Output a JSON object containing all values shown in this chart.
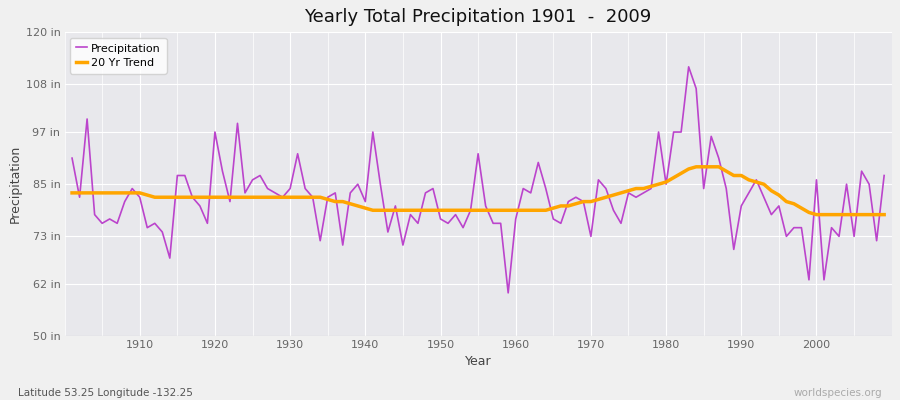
{
  "title": "Yearly Total Precipitation 1901  -  2009",
  "xlabel": "Year",
  "ylabel": "Precipitation",
  "subtitle": "Latitude 53.25 Longitude -132.25",
  "watermark": "worldspecies.org",
  "ylim": [
    50,
    120
  ],
  "ytick_values": [
    50,
    62,
    73,
    85,
    97,
    108,
    120
  ],
  "ytick_labels": [
    "50 in",
    "62 in",
    "73 in",
    "85 in",
    "97 in",
    "108 in",
    "120 in"
  ],
  "xlim": [
    1900,
    2010
  ],
  "xtick_positions": [
    1910,
    1920,
    1930,
    1940,
    1950,
    1960,
    1970,
    1980,
    1990,
    2000
  ],
  "precip_color": "#BB44CC",
  "trend_color": "#FFA500",
  "fig_bg_color": "#F0F0F0",
  "plot_bg_color": "#E8E8EC",
  "grid_color": "#FFFFFF",
  "subtitle_color": "#555555",
  "watermark_color": "#AAAAAA",
  "years": [
    1901,
    1902,
    1903,
    1904,
    1905,
    1906,
    1907,
    1908,
    1909,
    1910,
    1911,
    1912,
    1913,
    1914,
    1915,
    1916,
    1917,
    1918,
    1919,
    1920,
    1921,
    1922,
    1923,
    1924,
    1925,
    1926,
    1927,
    1928,
    1929,
    1930,
    1931,
    1932,
    1933,
    1934,
    1935,
    1936,
    1937,
    1938,
    1939,
    1940,
    1941,
    1942,
    1943,
    1944,
    1945,
    1946,
    1947,
    1948,
    1949,
    1950,
    1951,
    1952,
    1953,
    1954,
    1955,
    1956,
    1957,
    1958,
    1959,
    1960,
    1961,
    1962,
    1963,
    1964,
    1965,
    1966,
    1967,
    1968,
    1969,
    1970,
    1971,
    1972,
    1973,
    1974,
    1975,
    1976,
    1977,
    1978,
    1979,
    1980,
    1981,
    1982,
    1983,
    1984,
    1985,
    1986,
    1987,
    1988,
    1989,
    1990,
    1991,
    1992,
    1993,
    1994,
    1995,
    1996,
    1997,
    1998,
    1999,
    2000,
    2001,
    2002,
    2003,
    2004,
    2005,
    2006,
    2007,
    2008,
    2009
  ],
  "precipitation": [
    91,
    82,
    100,
    78,
    76,
    77,
    76,
    81,
    84,
    82,
    75,
    76,
    74,
    68,
    87,
    87,
    82,
    80,
    76,
    97,
    88,
    81,
    99,
    83,
    86,
    87,
    84,
    83,
    82,
    84,
    92,
    84,
    82,
    72,
    82,
    83,
    71,
    83,
    85,
    81,
    97,
    85,
    74,
    80,
    71,
    78,
    76,
    83,
    84,
    77,
    76,
    78,
    75,
    79,
    92,
    80,
    76,
    76,
    60,
    77,
    84,
    83,
    90,
    84,
    77,
    76,
    81,
    82,
    81,
    73,
    86,
    84,
    79,
    76,
    83,
    82,
    83,
    84,
    97,
    85,
    97,
    97,
    112,
    107,
    84,
    96,
    91,
    84,
    70,
    80,
    83,
    86,
    82,
    78,
    80,
    73,
    75,
    75,
    63,
    86,
    63,
    75,
    73,
    85,
    73,
    88,
    85,
    72,
    87
  ],
  "trend": [
    83.0,
    83.0,
    83.0,
    83.0,
    83.0,
    83.0,
    83.0,
    83.0,
    83.0,
    83.0,
    82.5,
    82.0,
    82.0,
    82.0,
    82.0,
    82.0,
    82.0,
    82.0,
    82.0,
    82.0,
    82.0,
    82.0,
    82.0,
    82.0,
    82.0,
    82.0,
    82.0,
    82.0,
    82.0,
    82.0,
    82.0,
    82.0,
    82.0,
    82.0,
    81.5,
    81.0,
    81.0,
    80.5,
    80.0,
    79.5,
    79.0,
    79.0,
    79.0,
    79.0,
    79.0,
    79.0,
    79.0,
    79.0,
    79.0,
    79.0,
    79.0,
    79.0,
    79.0,
    79.0,
    79.0,
    79.0,
    79.0,
    79.0,
    79.0,
    79.0,
    79.0,
    79.0,
    79.0,
    79.0,
    79.5,
    80.0,
    80.0,
    80.5,
    81.0,
    81.0,
    81.5,
    82.0,
    82.5,
    83.0,
    83.5,
    84.0,
    84.0,
    84.5,
    85.0,
    85.5,
    86.5,
    87.5,
    88.5,
    89.0,
    89.0,
    89.0,
    89.0,
    88.0,
    87.0,
    87.0,
    86.0,
    85.5,
    85.0,
    83.5,
    82.5,
    81.0,
    80.5,
    79.5,
    78.5,
    78.0,
    78.0,
    78.0,
    78.0,
    78.0,
    78.0,
    78.0,
    78.0,
    78.0,
    78.0
  ]
}
